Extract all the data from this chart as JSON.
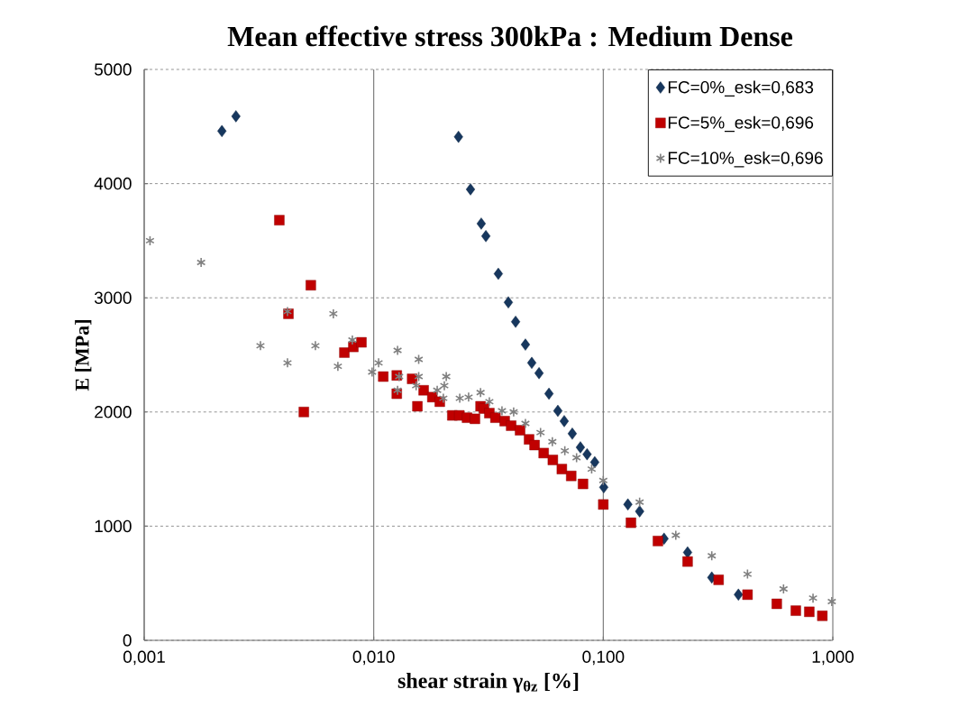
{
  "chart_data": {
    "type": "scatter",
    "title": "Mean effective stress  300kPa : Medium Dense",
    "xlabel": "shear strain γ$_{θz}$ [%]",
    "ylabel": "E [MPa]",
    "log": "x",
    "grid": true,
    "legend": "top right",
    "xlim": [
      0.001,
      1
    ],
    "xticks": [
      {
        "value": 0.001,
        "label": "0,001"
      },
      {
        "value": 0.01,
        "label": "0,010"
      },
      {
        "value": 0.1,
        "label": "0,100"
      },
      {
        "value": 1,
        "label": "1,000"
      }
    ],
    "ylim": [
      0,
      5000
    ],
    "yticks": [
      0,
      1000,
      2000,
      3000,
      4000,
      5000
    ],
    "series": [
      {
        "name": "FC=0%_esk=0,683",
        "color": "#17375e",
        "marker": "diamond",
        "x": [
          0.00218,
          0.00251,
          0.0234,
          0.0264,
          0.0294,
          0.0308,
          0.0349,
          0.0386,
          0.0415,
          0.0458,
          0.0488,
          0.0525,
          0.058,
          0.0634,
          0.0676,
          0.0733,
          0.0795,
          0.085,
          0.0918,
          0.1005,
          0.128,
          0.144,
          0.184,
          0.233,
          0.297,
          0.388
        ],
        "values": [
          4460,
          4590,
          4410,
          3950,
          3650,
          3540,
          3210,
          2960,
          2790,
          2590,
          2430,
          2340,
          2160,
          2010,
          1920,
          1810,
          1690,
          1630,
          1560,
          1340,
          1190,
          1130,
          890,
          770,
          550,
          400
        ]
      },
      {
        "name": "FC=5%_esk=0,696",
        "color": "#c00000",
        "marker": "square",
        "x": [
          0.00388,
          0.00425,
          0.00496,
          0.00532,
          0.00745,
          0.00815,
          0.00884,
          0.011,
          0.0126,
          0.0126,
          0.0147,
          0.0155,
          0.0165,
          0.018,
          0.0194,
          0.022,
          0.0236,
          0.0255,
          0.0276,
          0.0292,
          0.0302,
          0.0319,
          0.0339,
          0.0372,
          0.0397,
          0.0434,
          0.0475,
          0.0502,
          0.055,
          0.0603,
          0.066,
          0.0725,
          0.0816,
          0.1,
          0.132,
          0.173,
          0.233,
          0.318,
          0.425,
          0.57,
          0.69,
          0.79,
          0.9
        ],
        "values": [
          3680,
          2860,
          2000,
          3110,
          2520,
          2570,
          2610,
          2310,
          2320,
          2160,
          2290,
          2050,
          2190,
          2130,
          2090,
          1970,
          1970,
          1950,
          1940,
          2050,
          2030,
          1990,
          1950,
          1920,
          1880,
          1840,
          1760,
          1710,
          1640,
          1580,
          1500,
          1440,
          1370,
          1190,
          1030,
          870,
          690,
          530,
          400,
          320,
          260,
          250,
          215
        ]
      },
      {
        "name": "FC=10%_esk=0,696",
        "color": "#808080",
        "marker": "cross",
        "x": [
          0.00106,
          0.00177,
          0.00321,
          0.00421,
          0.00421,
          0.00557,
          0.00667,
          0.00698,
          0.00807,
          0.00984,
          0.0105,
          0.0127,
          0.0127,
          0.0129,
          0.0157,
          0.0157,
          0.0153,
          0.0189,
          0.0207,
          0.0203,
          0.0201,
          0.0237,
          0.0259,
          0.0292,
          0.0319,
          0.0362,
          0.0407,
          0.0458,
          0.0533,
          0.06,
          0.068,
          0.0765,
          0.089,
          0.1,
          0.144,
          0.207,
          0.297,
          0.425,
          0.61,
          0.82,
          0.99
        ],
        "values": [
          3500,
          3310,
          2580,
          2880,
          2430,
          2580,
          2860,
          2400,
          2630,
          2350,
          2430,
          2540,
          2190,
          2310,
          2460,
          2310,
          2230,
          2190,
          2310,
          2230,
          2120,
          2120,
          2130,
          2170,
          2090,
          2010,
          2000,
          1900,
          1820,
          1740,
          1660,
          1600,
          1500,
          1400,
          1210,
          920,
          740,
          580,
          450,
          370,
          340
        ]
      }
    ]
  }
}
